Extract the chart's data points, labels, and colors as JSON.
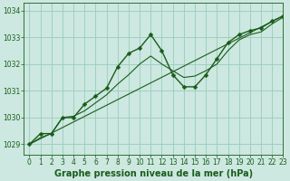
{
  "background_color": "#cce8e0",
  "plot_bg_color": "#cce8e0",
  "grid_color": "#99ccbb",
  "line_color": "#1a5c1a",
  "marker_color": "#1a5c1a",
  "xlabel": "Graphe pression niveau de la mer (hPa)",
  "ylim": [
    1028.6,
    1034.3
  ],
  "xlim": [
    -0.5,
    23
  ],
  "yticks": [
    1029,
    1030,
    1031,
    1032,
    1033,
    1034
  ],
  "xticks": [
    0,
    1,
    2,
    3,
    4,
    5,
    6,
    7,
    8,
    9,
    10,
    11,
    12,
    13,
    14,
    15,
    16,
    17,
    18,
    19,
    20,
    21,
    22,
    23
  ],
  "series1_x": [
    0,
    1,
    2,
    3,
    4,
    5,
    6,
    7,
    8,
    9,
    10,
    11,
    12,
    13,
    14,
    15,
    16,
    17,
    18,
    19,
    20,
    21,
    22,
    23
  ],
  "series1_y": [
    1029.0,
    1029.4,
    1029.4,
    1030.0,
    1030.0,
    1030.5,
    1030.8,
    1031.1,
    1031.9,
    1032.4,
    1032.6,
    1033.1,
    1032.5,
    1031.6,
    1031.15,
    1031.15,
    1031.6,
    1032.2,
    1032.8,
    1033.1,
    1033.25,
    1033.35,
    1033.6,
    1033.8
  ],
  "series2_x": [
    0,
    1,
    2,
    3,
    4,
    5,
    6,
    7,
    8,
    9,
    10,
    11,
    12,
    13,
    14,
    15,
    16,
    17,
    18,
    19,
    20,
    21,
    22,
    23
  ],
  "series2_y": [
    1029.0,
    1029.25,
    1029.4,
    1030.0,
    1030.05,
    1030.25,
    1030.55,
    1030.85,
    1031.25,
    1031.6,
    1032.0,
    1032.3,
    1032.0,
    1031.75,
    1031.5,
    1031.55,
    1031.75,
    1032.0,
    1032.5,
    1032.9,
    1033.1,
    1033.2,
    1033.5,
    1033.75
  ],
  "series3_x": [
    0,
    23
  ],
  "series3_y": [
    1029.0,
    1033.8
  ],
  "tick_fontsize": 5.5,
  "xlabel_fontsize": 7,
  "linewidth": 1.0,
  "linewidth_thin": 0.8,
  "marker_size": 2.5,
  "spine_color": "#1a5c1a"
}
